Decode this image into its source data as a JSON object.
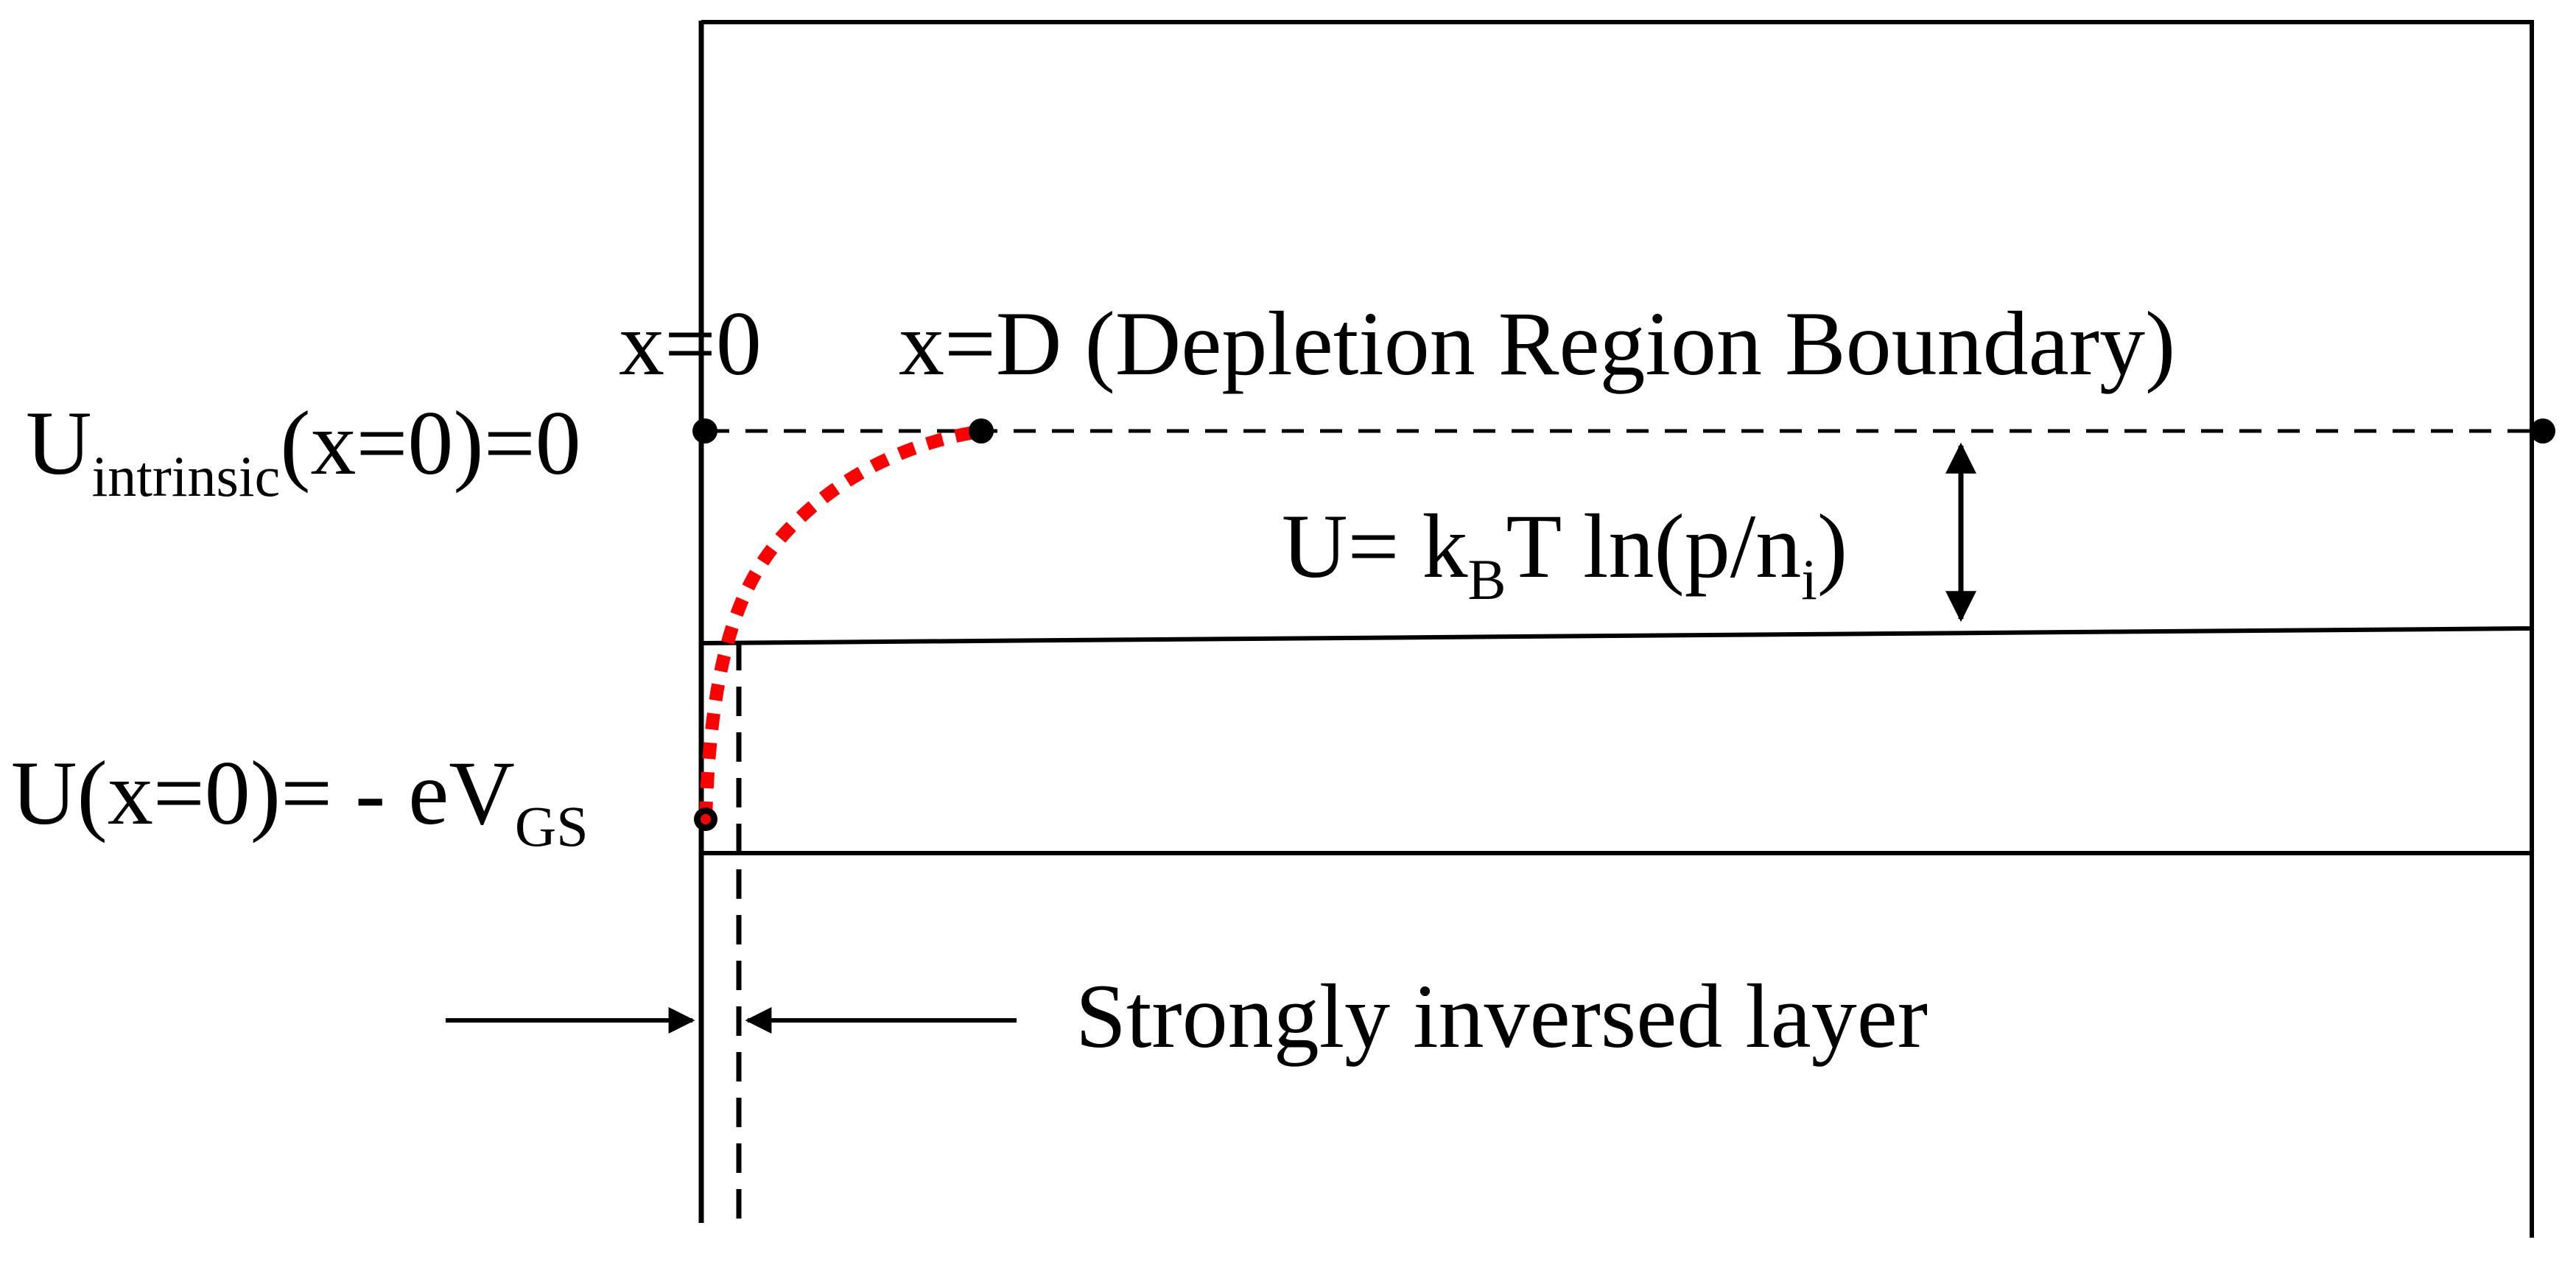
{
  "labels": {
    "x0": "x=0",
    "xD": "x=D (Depletion Region Boundary)",
    "u_intrinsic_main": "U",
    "u_intrinsic_sub": "intrinsic",
    "u_intrinsic_rest": "(x=0)=0",
    "u_gap_prefix": "U= k",
    "u_gap_sub_b": "B",
    "u_gap_mid": "T ln(p/n",
    "u_gap_sub_i": "i",
    "u_gap_end": ")",
    "u_surface_main": "U(x=0)= - eV",
    "u_surface_sub": "GS",
    "inversion_layer": "Strongly inversed layer"
  },
  "colors": {
    "line": "#000000",
    "potential_curve": "#ff0000",
    "background": "#ffffff"
  }
}
